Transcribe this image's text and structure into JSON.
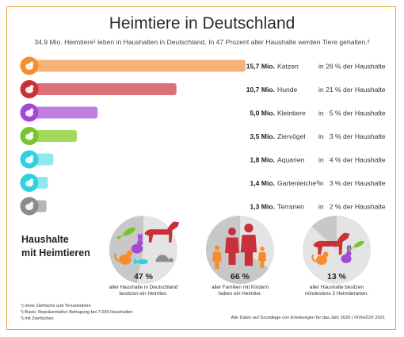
{
  "title": "Heimtiere in Deutschland",
  "subtitle": "34,9 Mio. Heimtiere¹ leben in Haushalten in Deutschland. In 47 Prozent aller Haushalte werden Tiere gehalten.²",
  "chart_data": {
    "type": "bar",
    "orientation": "horizontal",
    "unit": "Mio.",
    "categories": [
      "Katzen",
      "Hunde",
      "Kleintiere",
      "Ziervögel",
      "Aquarien",
      "Gartenteiche³",
      "Terrarien"
    ],
    "values": [
      15.7,
      10.7,
      5.0,
      3.5,
      1.8,
      1.4,
      1.3
    ],
    "value_labels": [
      "15,7 Mio.",
      "10,7 Mio.",
      "5,0 Mio.",
      "3,5 Mio.",
      "1,8 Mio.",
      "1,4 Mio.",
      "1,3 Mio."
    ],
    "household_share": [
      "in 26 % der Haushalte",
      "in 21 % der Haushalte",
      "in   5 % der Haushalte",
      "in   3 % der Haushalte",
      "in   4 % der Haushalte",
      "in   3 % der Haushalte",
      "in   2 % der Haushalte"
    ],
    "colors": [
      "#f7b37a",
      "#dd6f77",
      "#c27fe0",
      "#a5d95c",
      "#8ee8ee",
      "#8ee8ee",
      "#b5b5b5"
    ],
    "icon_colors": [
      "#f58d2e",
      "#c9313a",
      "#a448d6",
      "#78c42e",
      "#2fd2de",
      "#2fd2de",
      "#8c8c8c"
    ],
    "icons": [
      "cat-icon",
      "dog-icon",
      "rabbit-icon",
      "bird-icon",
      "fish-icon",
      "koi-icon",
      "turtle-icon"
    ],
    "xlim": [
      0,
      15.7
    ]
  },
  "households": {
    "title_line1": "Haushalte",
    "title_line2": "mit Heimtieren",
    "items": [
      {
        "value": 47,
        "percent_label": "47 %",
        "caption_line1": "aller Haushalte in Deutschland",
        "caption_line2": "besitzen ein Heimtier."
      },
      {
        "value": 66,
        "percent_label": "66 %",
        "caption_line1": "aller Familien mit Kindern",
        "caption_line2": "haben ein Heimtier."
      },
      {
        "value": 13,
        "percent_label": "13 %",
        "caption_line1": "aller Haushalte besitzen",
        "caption_line2": "mindestens 2 Heimtierarten."
      }
    ]
  },
  "footnotes": {
    "note1": "¹) ohne Zierfische und Terrarientiere",
    "note2": "²) Basis: Repräsentative Befragung bei 7.000 Haushalten",
    "note3": "³) mit Zierfischen"
  },
  "source": "Alle Daten auf Grundlage von Erhebungen für das Jahr 2020 | ©IVH/ZZF 2021"
}
